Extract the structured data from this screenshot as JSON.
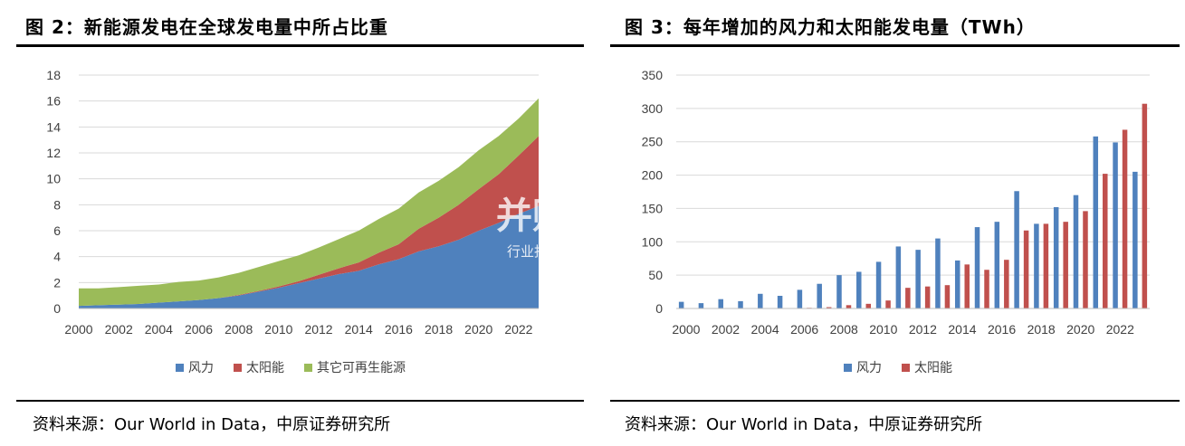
{
  "left": {
    "title": "图 2：新能源发电在全球发电量中所占比重",
    "source": "资料来源：Our World in Data，中原证券研究所"
  },
  "right": {
    "title": "图 3：每年增加的风力和太阳能发电量（TWh）",
    "source": "资料来源：Our World in Data，中原证券研究所"
  },
  "watermark": {
    "main": "并购家",
    "sub": "行业报告 IPOIPO.CN"
  },
  "chart_data": [
    {
      "type": "area",
      "stacked": true,
      "title": "",
      "x": [
        2000,
        2001,
        2002,
        2003,
        2004,
        2005,
        2006,
        2007,
        2008,
        2009,
        2010,
        2011,
        2012,
        2013,
        2014,
        2015,
        2016,
        2017,
        2018,
        2019,
        2020,
        2021,
        2022,
        2023
      ],
      "series": [
        {
          "name": "风力",
          "color": "#4f81bd",
          "values": [
            0.2,
            0.25,
            0.3,
            0.35,
            0.45,
            0.55,
            0.65,
            0.8,
            1.0,
            1.3,
            1.6,
            1.95,
            2.3,
            2.65,
            2.9,
            3.4,
            3.8,
            4.4,
            4.8,
            5.3,
            6.0,
            6.6,
            7.3,
            7.9
          ]
        },
        {
          "name": "太阳能",
          "color": "#c0504d",
          "values": [
            0.0,
            0.0,
            0.0,
            0.0,
            0.0,
            0.0,
            0.0,
            0.0,
            0.05,
            0.05,
            0.1,
            0.15,
            0.3,
            0.45,
            0.65,
            0.9,
            1.15,
            1.75,
            2.2,
            2.7,
            3.2,
            3.75,
            4.5,
            5.4
          ]
        },
        {
          "name": "其它可再生能源",
          "color": "#9bbb59",
          "values": [
            1.35,
            1.3,
            1.35,
            1.4,
            1.4,
            1.5,
            1.5,
            1.6,
            1.7,
            1.85,
            1.95,
            2.0,
            2.1,
            2.25,
            2.45,
            2.6,
            2.75,
            2.8,
            2.85,
            2.9,
            3.0,
            2.95,
            2.85,
            2.9
          ]
        }
      ],
      "xticks": [
        "2000",
        "2002",
        "2004",
        "2006",
        "2008",
        "2010",
        "2012",
        "2014",
        "2016",
        "2018",
        "2020",
        "2022"
      ],
      "ylim": [
        0,
        18
      ],
      "yticks": [
        0,
        2,
        4,
        6,
        8,
        10,
        12,
        14,
        16,
        18
      ],
      "grid": true,
      "legend": "bottom"
    },
    {
      "type": "bar",
      "title": "",
      "x": [
        2000,
        2001,
        2002,
        2003,
        2004,
        2005,
        2006,
        2007,
        2008,
        2009,
        2010,
        2011,
        2012,
        2013,
        2014,
        2015,
        2016,
        2017,
        2018,
        2019,
        2020,
        2021,
        2022,
        2023
      ],
      "series": [
        {
          "name": "风力",
          "color": "#4f81bd",
          "values": [
            10,
            8,
            14,
            11,
            22,
            19,
            28,
            37,
            50,
            55,
            70,
            93,
            88,
            105,
            72,
            122,
            130,
            176,
            127,
            152,
            170,
            258,
            249,
            205
          ]
        },
        {
          "name": "太阳能",
          "color": "#c0504d",
          "values": [
            0,
            0,
            0,
            0,
            0,
            0,
            1,
            2,
            5,
            7,
            12,
            31,
            33,
            35,
            66,
            58,
            73,
            117,
            127,
            130,
            146,
            202,
            268,
            307
          ]
        }
      ],
      "xticks": [
        "2000",
        "2002",
        "2004",
        "2006",
        "2008",
        "2010",
        "2012",
        "2014",
        "2016",
        "2018",
        "2020",
        "2022"
      ],
      "ylim": [
        0,
        350
      ],
      "yticks": [
        0,
        50,
        100,
        150,
        200,
        250,
        300,
        350
      ],
      "grid": true,
      "legend": "bottom"
    }
  ]
}
